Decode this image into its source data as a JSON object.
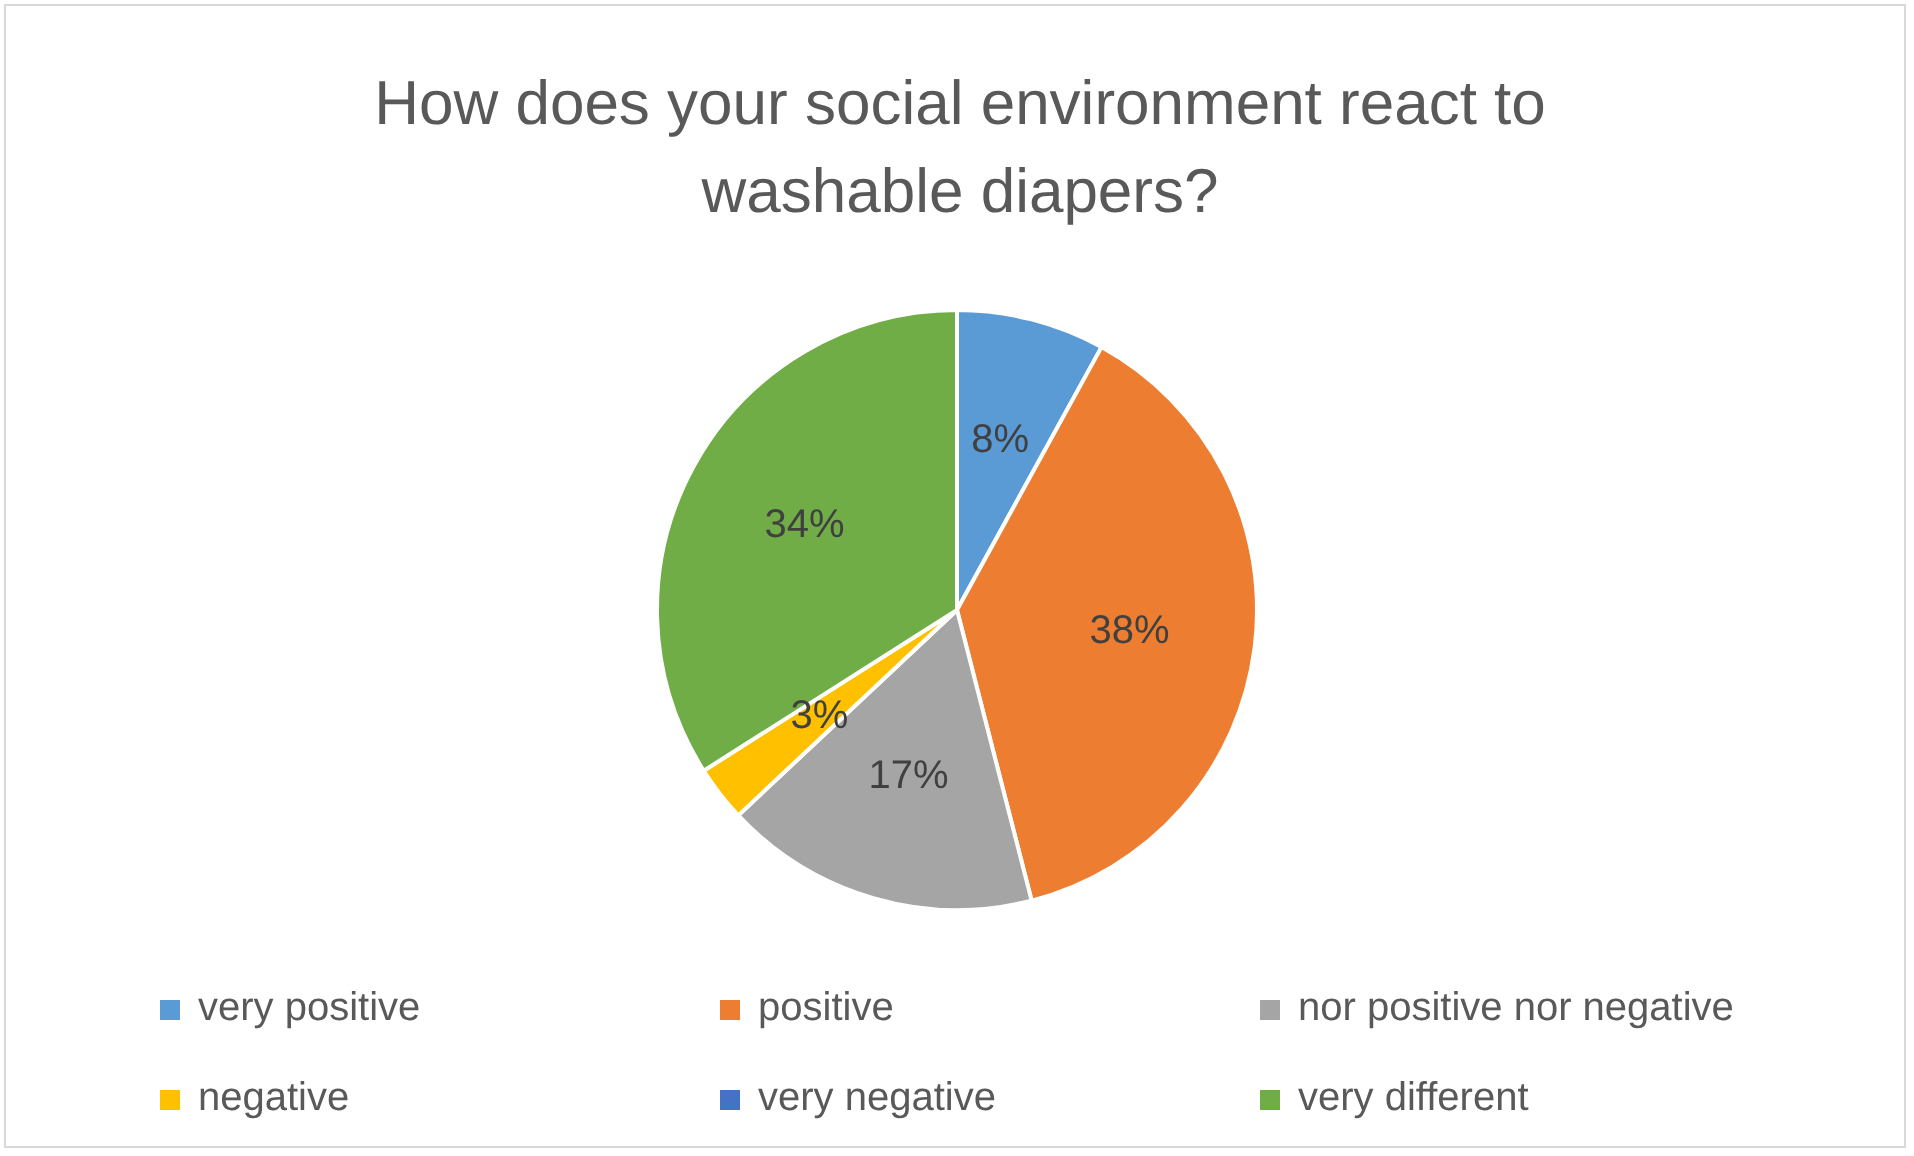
{
  "chart_data": {
    "type": "pie",
    "title": "How does your social environment react to washable diapers?",
    "categories": [
      "very positive",
      "positive",
      "nor positive nor negative",
      "negative",
      "very negative",
      "very different"
    ],
    "values": [
      8,
      38,
      17,
      3,
      0,
      34
    ],
    "colors": [
      "#5b9bd5",
      "#ed7d31",
      "#a5a5a5",
      "#ffc000",
      "#4472c4",
      "#70ad47"
    ],
    "value_labels": [
      "8%",
      "38%",
      "17%",
      "3%",
      null,
      "34%"
    ],
    "legend": "bottom"
  }
}
